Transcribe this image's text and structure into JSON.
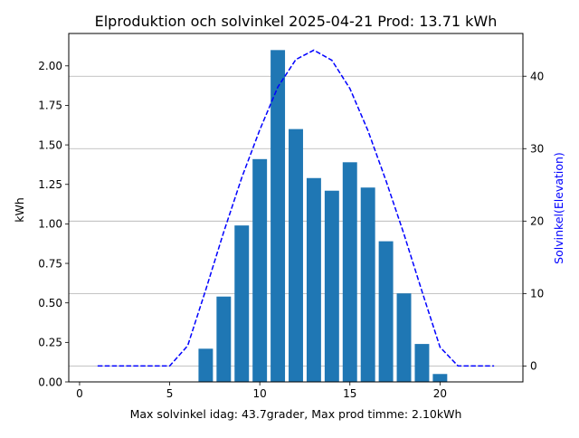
{
  "chart_data": {
    "type": "bar",
    "title": "Elproduktion och solvinkel 2025-04-21 Prod: 13.71 kWh",
    "xlabel": "Max solvinkel idag: 43.7grader, Max prod timme: 2.10kWh",
    "ylabel": "kWh",
    "y2label": "Solvinkel(Elevation)",
    "xlim": [
      -0.6,
      24.6
    ],
    "ylim": [
      0,
      2.205
    ],
    "y2lim": [
      -2.2,
      45.9
    ],
    "xticks": [
      0,
      5,
      10,
      15,
      20
    ],
    "yticks": [
      0.0,
      0.25,
      0.5,
      0.75,
      1.0,
      1.25,
      1.5,
      1.75,
      2.0
    ],
    "ytick_labels": [
      "0.00",
      "0.25",
      "0.50",
      "0.75",
      "1.00",
      "1.25",
      "1.50",
      "1.75",
      "2.00"
    ],
    "y2ticks": [
      0,
      10,
      20,
      30,
      40
    ],
    "grid": "y2-major",
    "bar_color": "#1f77b4",
    "line_color": "#0000ff",
    "series": [
      {
        "kind": "bar",
        "axis": "left",
        "x": [
          7,
          8,
          9,
          10,
          11,
          12,
          13,
          14,
          15,
          16,
          17,
          18,
          19,
          20
        ],
        "values": [
          0.21,
          0.54,
          0.99,
          1.41,
          2.1,
          1.6,
          1.29,
          1.21,
          1.39,
          1.23,
          0.89,
          0.56,
          0.24,
          0.05
        ]
      },
      {
        "kind": "line",
        "axis": "right",
        "style": "dashed",
        "x": [
          1,
          2,
          3,
          4,
          5,
          6,
          7,
          8,
          9,
          10,
          11,
          12,
          13,
          14,
          15,
          16,
          17,
          18,
          19,
          20,
          21,
          22,
          23
        ],
        "values": [
          0,
          0,
          0,
          0,
          0,
          2.8,
          10.5,
          18.5,
          26,
          32.6,
          38.5,
          42.3,
          43.6,
          42.2,
          38.3,
          32.5,
          25.6,
          18.2,
          10.3,
          2.6,
          0,
          0,
          0
        ]
      }
    ]
  }
}
